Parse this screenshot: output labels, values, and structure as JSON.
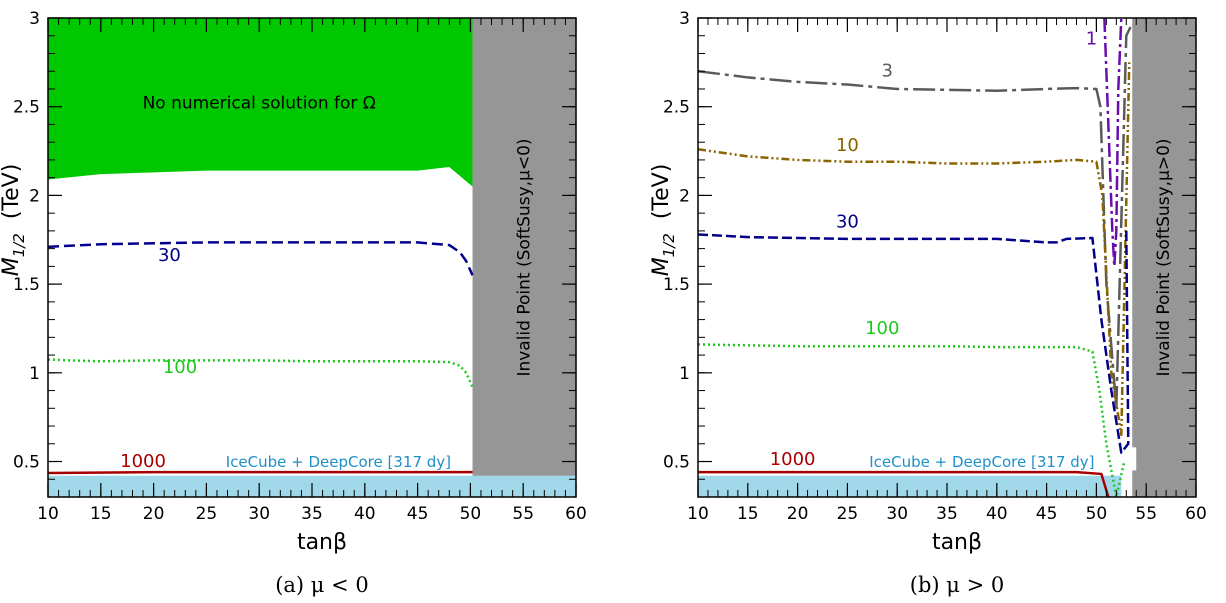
{
  "chart_data": [
    {
      "type": "line",
      "panel": "a",
      "caption": "(a) μ < 0",
      "xlabel": "tanβ",
      "ylabel_main": "M",
      "ylabel_sub": "1/2",
      "ylabel_unit": "(TeV)",
      "xlim": [
        10,
        60
      ],
      "ylim": [
        0.3,
        3.0
      ],
      "xticks": [
        "10",
        "15",
        "20",
        "25",
        "30",
        "35",
        "40",
        "45",
        "50",
        "55",
        "60"
      ],
      "yticks": [
        "0.5",
        "1",
        "1.5",
        "2",
        "2.5",
        "3"
      ],
      "colors": {
        "green_region": "#00c800",
        "invalid": "#969696",
        "icecube": "#a0d8ea",
        "c30": "#00008b",
        "c100": "#1ec81e",
        "c1000": "#a80000",
        "icecube_text": "#1e90c8"
      },
      "regions": [
        {
          "name": "No numerical solution for Ω",
          "label": "No numerical solution for Ω",
          "color": "green_region",
          "boundary": [
            [
              10,
              2.09
            ],
            [
              15,
              2.12
            ],
            [
              20,
              2.13
            ],
            [
              25,
              2.14
            ],
            [
              30,
              2.14
            ],
            [
              35,
              2.14
            ],
            [
              40,
              2.14
            ],
            [
              45,
              2.14
            ],
            [
              48,
              2.16
            ],
            [
              50,
              2.06
            ],
            [
              50.2,
              2.05
            ]
          ]
        },
        {
          "name": "invalid",
          "label": "Invalid Point (SoftSusy,μ<0)",
          "color": "invalid",
          "xmin": 50.2
        },
        {
          "name": "icecube",
          "color": "icecube",
          "top": 0.42
        }
      ],
      "series": [
        {
          "name": "30",
          "label": "30",
          "color": "c30",
          "dash": "11,5",
          "x": [
            10,
            15,
            20,
            25,
            30,
            35,
            40,
            45,
            48,
            49,
            49.6,
            50.2
          ],
          "y": [
            1.71,
            1.725,
            1.73,
            1.735,
            1.735,
            1.735,
            1.735,
            1.735,
            1.72,
            1.68,
            1.63,
            1.55
          ],
          "label_x": 21.5,
          "label_y": 1.63
        },
        {
          "name": "100",
          "label": "100",
          "color": "c100",
          "dash": "2,3",
          "x": [
            10,
            12,
            15,
            20,
            25,
            30,
            35,
            40,
            45,
            48,
            49,
            49.6,
            50.2
          ],
          "y": [
            1.075,
            1.07,
            1.065,
            1.07,
            1.07,
            1.07,
            1.065,
            1.065,
            1.065,
            1.06,
            1.04,
            1.0,
            0.92
          ],
          "label_x": 22.5,
          "label_y": 1.0
        },
        {
          "name": "1000",
          "label": "1000",
          "color": "c1000",
          "dash": "",
          "x": [
            10,
            20,
            30,
            40,
            50.2
          ],
          "y": [
            0.435,
            0.44,
            0.44,
            0.44,
            0.44
          ],
          "label_x": 19,
          "label_y": 0.47
        }
      ],
      "ic_text": "IceCube + DeepCore [317 dy]",
      "ic_text_x": 37.5,
      "ic_text_y": 0.47
    },
    {
      "type": "line",
      "panel": "b",
      "caption": "(b) μ > 0",
      "xlabel": "tanβ",
      "ylabel_main": "M",
      "ylabel_sub": "1/2",
      "ylabel_unit": "(TeV)",
      "xlim": [
        10,
        60
      ],
      "ylim": [
        0.3,
        3.0
      ],
      "xticks": [
        "10",
        "15",
        "20",
        "25",
        "30",
        "35",
        "40",
        "45",
        "50",
        "55",
        "60"
      ],
      "yticks": [
        "0.5",
        "1",
        "1.5",
        "2",
        "2.5",
        "3"
      ],
      "colors": {
        "invalid": "#969696",
        "icecube": "#a0d8ea",
        "c1": "#6a0dad",
        "c3": "#5a5a5a",
        "c10": "#8b6400",
        "c30": "#00008b",
        "c100": "#1ec81e",
        "c1000": "#a80000",
        "icecube_text": "#1e90c8"
      },
      "regions": [
        {
          "name": "invalid",
          "label": "Invalid Point (SoftSusy,μ>0)",
          "color": "invalid",
          "xmin": 53.6,
          "notch": [
            [
              53.3,
              0.45
            ],
            [
              54.0,
              0.45
            ],
            [
              54.0,
              0.58
            ],
            [
              53.3,
              0.58
            ]
          ]
        },
        {
          "name": "icecube",
          "color": "icecube",
          "top": 0.42,
          "xmax": 52.5
        }
      ],
      "series": [
        {
          "name": "3",
          "label": "3",
          "color": "c3",
          "dash": "22,5,4,5",
          "x": [
            10,
            15,
            20,
            25,
            30,
            35,
            40,
            45,
            48,
            50,
            50.4,
            51,
            52,
            53,
            53.6
          ],
          "y": [
            2.7,
            2.665,
            2.64,
            2.625,
            2.6,
            2.595,
            2.59,
            2.6,
            2.605,
            2.6,
            2.5,
            1.5,
            0.8,
            2.9,
            2.97
          ],
          "label_x": 29,
          "label_y": 2.67
        },
        {
          "name": "10",
          "label": "10",
          "color": "c10",
          "dash": "8,3,2,3,2,3",
          "x": [
            10,
            15,
            20,
            25,
            30,
            35,
            40,
            45,
            48,
            50,
            50.6,
            51.5,
            52.5,
            53.3
          ],
          "y": [
            2.26,
            2.22,
            2.2,
            2.19,
            2.19,
            2.18,
            2.18,
            2.19,
            2.2,
            2.19,
            2.0,
            1.0,
            0.65,
            2.75
          ],
          "label_x": 25,
          "label_y": 2.25
        },
        {
          "name": "30",
          "label": "30",
          "color": "c30",
          "dash": "10,4",
          "x": [
            10,
            15,
            20,
            25,
            30,
            35,
            40,
            45,
            46,
            47,
            49.6,
            50.5,
            51.5,
            52.5,
            53.2,
            53.0
          ],
          "y": [
            1.78,
            1.765,
            1.76,
            1.755,
            1.755,
            1.755,
            1.755,
            1.735,
            1.735,
            1.755,
            1.76,
            1.3,
            0.9,
            0.55,
            0.6,
            1.8
          ],
          "label_x": 25,
          "label_y": 1.82
        },
        {
          "name": "100",
          "label": "100",
          "color": "c100",
          "dash": "2,3",
          "x": [
            10,
            15,
            20,
            25,
            30,
            35,
            40,
            45,
            48,
            49.6,
            50.3,
            51,
            52,
            52.8
          ],
          "y": [
            1.16,
            1.155,
            1.15,
            1.15,
            1.15,
            1.15,
            1.145,
            1.145,
            1.145,
            1.12,
            0.9,
            0.6,
            0.3,
            0.5
          ],
          "label_x": 28.5,
          "label_y": 1.22
        },
        {
          "name": "1000",
          "label": "1000",
          "color": "c1000",
          "dash": "",
          "x": [
            10,
            20,
            30,
            40,
            48,
            50.5,
            51.2
          ],
          "y": [
            0.44,
            0.44,
            0.44,
            0.44,
            0.44,
            0.43,
            0.3
          ],
          "label_x": 19.5,
          "label_y": 0.48
        },
        {
          "name": "1",
          "label": "1",
          "color": "c1",
          "dash": "14,4,3,4",
          "x": [
            50.8,
            51.2,
            51.6,
            51.8,
            52,
            52.2,
            52.5
          ],
          "y": [
            3.0,
            2.4,
            1.8,
            1.6,
            1.8,
            2.6,
            3.0
          ],
          "label_x": 49.5,
          "label_y": 2.85
        }
      ],
      "ic_text": "IceCube + DeepCore [317 dy]",
      "ic_text_x": 38.5,
      "ic_text_y": 0.47
    }
  ]
}
